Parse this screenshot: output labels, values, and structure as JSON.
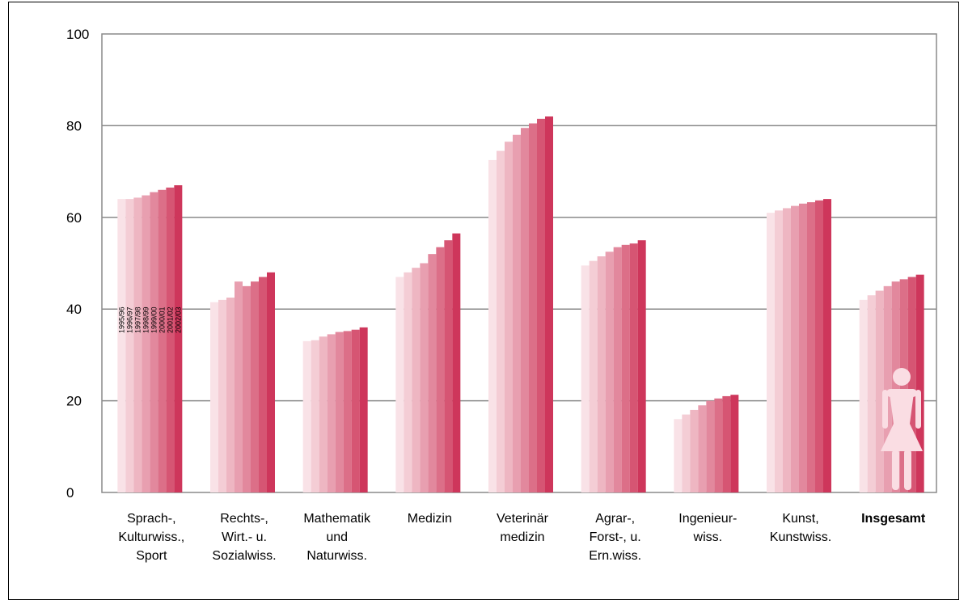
{
  "chart_data": {
    "type": "bar",
    "title": "",
    "xlabel": "",
    "ylabel": "",
    "ylim": [
      0,
      100
    ],
    "yticks": [
      0,
      20,
      40,
      60,
      80,
      100
    ],
    "grid": true,
    "legend_position": "inside-first-group",
    "series_colors": [
      "#f9e2e7",
      "#f4cdd5",
      "#eeb6c2",
      "#e89fb0",
      "#e2889d",
      "#dc6f88",
      "#d65573",
      "#ce365b"
    ],
    "series": [
      {
        "name": "1995/96",
        "values": [
          64,
          41.5,
          33,
          47,
          72.5,
          49.5,
          16,
          61,
          42
        ]
      },
      {
        "name": "1996/97",
        "values": [
          64,
          42,
          33.2,
          48,
          74.5,
          50.5,
          17,
          61.5,
          43
        ]
      },
      {
        "name": "1997/98",
        "values": [
          64.3,
          42.5,
          34,
          49,
          76.5,
          51.5,
          18,
          62,
          44
        ]
      },
      {
        "name": "1998/99",
        "values": [
          64.8,
          46,
          34.5,
          50,
          78,
          52.5,
          19,
          62.5,
          45
        ]
      },
      {
        "name": "1999/00",
        "values": [
          65.5,
          45,
          35,
          52,
          79.5,
          53.5,
          20,
          63,
          46
        ]
      },
      {
        "name": "2000/01",
        "values": [
          66,
          46,
          35.2,
          53.5,
          80.5,
          54,
          20.5,
          63.3,
          46.5
        ]
      },
      {
        "name": "2001/02",
        "values": [
          66.5,
          47,
          35.5,
          55,
          81.5,
          54.3,
          21,
          63.7,
          47
        ]
      },
      {
        "name": "2002/03",
        "values": [
          67,
          48,
          36,
          56.5,
          82,
          55,
          21.3,
          64,
          47.5
        ]
      }
    ],
    "categories": [
      {
        "lines": [
          "Sprach-,",
          "Kulturwiss.,",
          "Sport"
        ],
        "bold": false
      },
      {
        "lines": [
          "Rechts-,",
          "Wirt.- u.",
          "Sozialwiss."
        ],
        "bold": false
      },
      {
        "lines": [
          "Mathematik",
          "und",
          "Naturwiss."
        ],
        "bold": false
      },
      {
        "lines": [
          "Medizin"
        ],
        "bold": false
      },
      {
        "lines": [
          "Veterinär",
          "medizin"
        ],
        "bold": false
      },
      {
        "lines": [
          "Agrar-,",
          "Forst-, u.",
          "Ern.wiss."
        ],
        "bold": false
      },
      {
        "lines": [
          "Ingenieur-",
          "wiss."
        ],
        "bold": false
      },
      {
        "lines": [
          "Kunst,",
          "Kunstwiss."
        ],
        "bold": false
      },
      {
        "lines": [
          "Insgesamt"
        ],
        "bold": true
      }
    ],
    "icon": "woman-figure-icon",
    "icon_color": "#fadde3"
  }
}
